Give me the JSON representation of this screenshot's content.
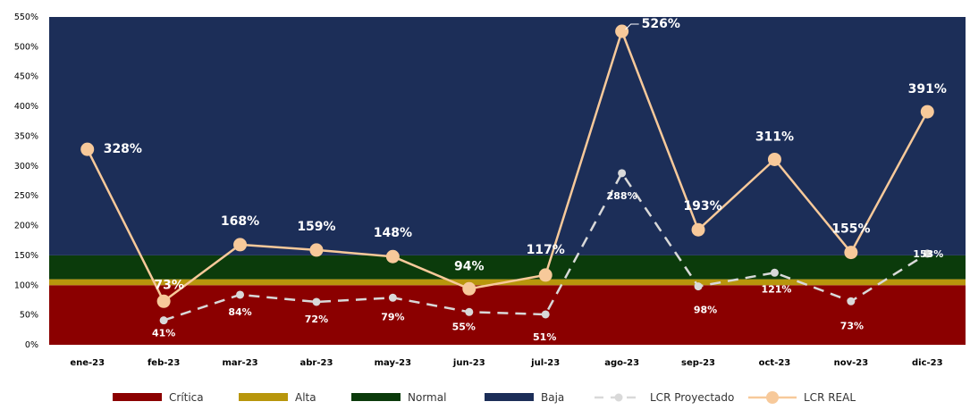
{
  "chart_data": {
    "type": "line",
    "categories": [
      "ene-23",
      "feb-23",
      "mar-23",
      "abr-23",
      "may-23",
      "jun-23",
      "jul-23",
      "ago-23",
      "sep-23",
      "oct-23",
      "nov-23",
      "dic-23"
    ],
    "y_ticks": [
      "0%",
      "50%",
      "100%",
      "150%",
      "200%",
      "250%",
      "300%",
      "350%",
      "400%",
      "450%",
      "500%",
      "550%"
    ],
    "ylim": [
      0,
      550
    ],
    "grid": false,
    "legend_position": "bottom",
    "bands": [
      {
        "name": "Crítica",
        "from": 0,
        "to": 100,
        "color": "#8b0000"
      },
      {
        "name": "Alta",
        "from": 100,
        "to": 110,
        "color": "#b8960c"
      },
      {
        "name": "Normal",
        "from": 110,
        "to": 150,
        "color": "#0b3b0b"
      },
      {
        "name": "Baja",
        "from": 150,
        "to": 550,
        "color": "#1c2e58"
      }
    ],
    "series": [
      {
        "name": "LCR Proyectado",
        "color": "#d9d9d9",
        "dashed": true,
        "values": [
          null,
          41,
          84,
          72,
          79,
          55,
          51,
          288,
          98,
          121,
          73,
          153
        ],
        "labels": [
          "",
          "41%",
          "84%",
          "72%",
          "79%",
          "55%",
          "51%",
          "288%",
          "98%",
          "121%",
          "73%",
          "153%"
        ]
      },
      {
        "name": "LCR REAL",
        "color": "#f7c99a",
        "dashed": false,
        "values": [
          328,
          73,
          168,
          159,
          148,
          94,
          117,
          526,
          193,
          311,
          155,
          391
        ],
        "labels": [
          "328%",
          "73%",
          "168%",
          "159%",
          "148%",
          "94%",
          "117%",
          "526%",
          "193%",
          "311%",
          "155%",
          "391%"
        ]
      }
    ]
  }
}
